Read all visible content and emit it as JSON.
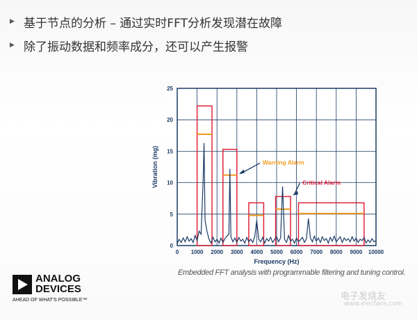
{
  "bullets": [
    "基于节点的分析 – 通过实时FFT分析发现潜在故障",
    "除了振动数据和频率成分，还可以产生报警"
  ],
  "chart_data": {
    "type": "line",
    "xlabel": "Frequency (Hz)",
    "ylabel": "Vibration (mg)",
    "xlim": [
      0,
      10000
    ],
    "ylim": [
      0,
      25
    ],
    "xticks": [
      0,
      1000,
      2000,
      3000,
      4000,
      5000,
      6000,
      7000,
      8000,
      9000,
      10000
    ],
    "yticks": [
      0,
      5,
      10,
      15,
      20,
      25
    ],
    "grid": true,
    "caption": "Embedded FFT analysis with programmable filtering and tuning control.",
    "spectrum": {
      "x": [
        0,
        100,
        200,
        300,
        400,
        500,
        600,
        700,
        800,
        900,
        1000,
        1100,
        1200,
        1300,
        1350,
        1400,
        1500,
        1600,
        1700,
        1800,
        1900,
        2000,
        2100,
        2200,
        2300,
        2400,
        2500,
        2600,
        2650,
        2700,
        2800,
        2900,
        3000,
        3100,
        3200,
        3300,
        3400,
        3500,
        3600,
        3700,
        3800,
        3900,
        4000,
        4100,
        4200,
        4300,
        4400,
        4500,
        4600,
        4700,
        4800,
        4900,
        5000,
        5100,
        5200,
        5300,
        5400,
        5500,
        5600,
        5700,
        5800,
        5900,
        6000,
        6100,
        6200,
        6300,
        6400,
        6500,
        6600,
        6700,
        6800,
        6900,
        7000,
        7100,
        7200,
        7300,
        7400,
        7500,
        7600,
        7700,
        7800,
        7900,
        8000,
        8100,
        8200,
        8300,
        8400,
        8500,
        8600,
        8700,
        8800,
        8900,
        9000,
        9100,
        9200,
        9300,
        9400,
        9500,
        9600,
        9700,
        9800,
        9900,
        10000
      ],
      "y": [
        0.3,
        1.0,
        0.5,
        1.2,
        0.6,
        1.4,
        0.7,
        1.1,
        0.5,
        1.6,
        0.8,
        2.3,
        1.8,
        10.0,
        16.3,
        4.0,
        2.2,
        1.0,
        0.4,
        1.3,
        0.6,
        1.0,
        0.4,
        1.2,
        0.5,
        1.1,
        1.5,
        1.8,
        12.2,
        1.4,
        0.6,
        1.2,
        0.5,
        1.3,
        0.7,
        1.0,
        0.4,
        1.3,
        0.6,
        1.0,
        0.5,
        1.4,
        4.0,
        1.0,
        0.6,
        1.3,
        0.4,
        1.1,
        0.7,
        1.3,
        0.5,
        1.0,
        1.4,
        0.6,
        1.2,
        9.4,
        1.0,
        0.5,
        1.6,
        0.7,
        1.0,
        0.4,
        1.2,
        0.6,
        0.9,
        1.3,
        0.5,
        1.1,
        4.3,
        1.2,
        0.6,
        1.5,
        0.7,
        1.2,
        0.5,
        1.4,
        0.8,
        1.1,
        0.4,
        1.3,
        0.7,
        1.5,
        0.6,
        1.0,
        1.4,
        0.5,
        1.2,
        0.8,
        1.1,
        0.6,
        1.4,
        0.7,
        1.2,
        0.5,
        1.0,
        0.8,
        1.3,
        0.4,
        0.9,
        0.5,
        1.1,
        0.6,
        0.8
      ]
    },
    "critical_bands": [
      {
        "from": 1000,
        "to": 1750,
        "critical": 22.2,
        "warning": 17.7
      },
      {
        "from": 2300,
        "to": 3000,
        "critical": 15.3,
        "warning": 11.2
      },
      {
        "from": 3600,
        "to": 4350,
        "critical": 6.8,
        "warning": 4.8
      },
      {
        "from": 4950,
        "to": 5700,
        "critical": 7.8,
        "warning": 5.8
      },
      {
        "from": 6100,
        "to": 9400,
        "critical": 6.8,
        "warning": 5.1
      }
    ],
    "annotations": [
      {
        "text": "Warning Alarm",
        "color": "#f39a1e",
        "arrow_to": [
          3000,
          11.2
        ],
        "at": [
          4300,
          12.9
        ]
      },
      {
        "text": "Critical Alarm",
        "color": "#e0213a",
        "arrow_to": [
          5700,
          7.8
        ],
        "at": [
          6300,
          9.7
        ]
      }
    ],
    "colors": {
      "line": "#1b3a66",
      "grid": "#1b3a66",
      "critical": "#e0213a",
      "warning": "#f39a1e"
    }
  },
  "logo": {
    "name_line1": "ANALOG",
    "name_line2": "DEVICES",
    "tagline": "AHEAD OF WHAT'S POSSIBLE™"
  },
  "watermark": {
    "cn": "电子发烧友",
    "url": "www.elecfans.com"
  }
}
